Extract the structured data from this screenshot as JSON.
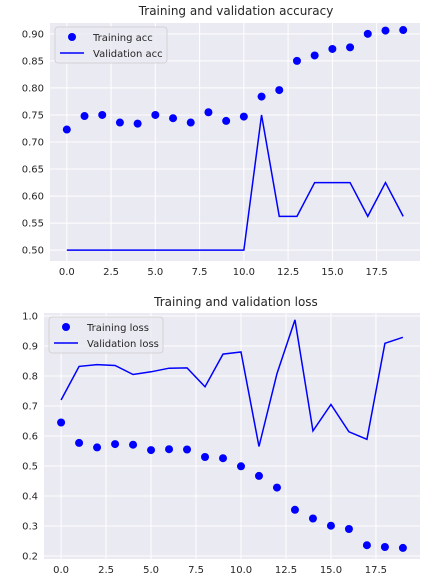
{
  "chart_data": [
    {
      "type": "scatter+line",
      "title": "Training and validation accuracy",
      "x": [
        0,
        1,
        2,
        3,
        4,
        5,
        6,
        7,
        8,
        9,
        10,
        11,
        12,
        13,
        14,
        15,
        16,
        17,
        18,
        19
      ],
      "series": [
        {
          "name": "Training acc",
          "style": "dots",
          "color": "#0000ff",
          "values": [
            0.723,
            0.748,
            0.75,
            0.736,
            0.734,
            0.75,
            0.744,
            0.736,
            0.755,
            0.739,
            0.747,
            0.784,
            0.796,
            0.85,
            0.86,
            0.872,
            0.875,
            0.9,
            0.906,
            0.907
          ]
        },
        {
          "name": "Validation acc",
          "style": "line",
          "color": "#0000ff",
          "values": [
            0.5,
            0.5,
            0.5,
            0.5,
            0.5,
            0.5,
            0.5,
            0.5,
            0.5,
            0.5,
            0.5,
            0.75,
            0.5625,
            0.5625,
            0.625,
            0.625,
            0.625,
            0.5625,
            0.625,
            0.5625
          ]
        }
      ],
      "xlim": [
        -0.95,
        19.95
      ],
      "ylim": [
        0.48,
        0.92
      ],
      "xticks": [
        0.0,
        2.5,
        5.0,
        7.5,
        10.0,
        12.5,
        15.0,
        17.5
      ],
      "xtick_labels": [
        "0.0",
        "2.5",
        "5.0",
        "7.5",
        "10.0",
        "12.5",
        "15.0",
        "17.5"
      ],
      "yticks": [
        0.5,
        0.55,
        0.6,
        0.65,
        0.7,
        0.75,
        0.8,
        0.85,
        0.9
      ],
      "ytick_labels": [
        "0.50",
        "0.55",
        "0.60",
        "0.65",
        "0.70",
        "0.75",
        "0.80",
        "0.85",
        "0.90"
      ],
      "grid": true,
      "legend": "upper-left",
      "background": "#eaeaf2"
    },
    {
      "type": "scatter+line",
      "title": "Training and validation loss",
      "x": [
        0,
        1,
        2,
        3,
        4,
        5,
        6,
        7,
        8,
        9,
        10,
        11,
        12,
        13,
        14,
        15,
        16,
        17,
        18,
        19
      ],
      "series": [
        {
          "name": "Training loss",
          "style": "dots",
          "color": "#0000ff",
          "values": [
            0.645,
            0.577,
            0.562,
            0.573,
            0.571,
            0.553,
            0.556,
            0.555,
            0.53,
            0.526,
            0.499,
            0.467,
            0.428,
            0.354,
            0.325,
            0.301,
            0.29,
            0.236,
            0.23,
            0.227
          ]
        },
        {
          "name": "Validation loss",
          "style": "line",
          "color": "#0000ff",
          "values": [
            0.72,
            0.832,
            0.838,
            0.835,
            0.805,
            0.814,
            0.826,
            0.827,
            0.764,
            0.873,
            0.88,
            0.565,
            0.808,
            0.987,
            0.617,
            0.705,
            0.614,
            0.589,
            0.909,
            0.929
          ]
        }
      ],
      "xlim": [
        -0.95,
        19.95
      ],
      "ylim": [
        0.19,
        1.01
      ],
      "xticks": [
        0.0,
        2.5,
        5.0,
        7.5,
        10.0,
        12.5,
        15.0,
        17.5
      ],
      "xtick_labels": [
        "0.0",
        "2.5",
        "5.0",
        "7.5",
        "10.0",
        "12.5",
        "15.0",
        "17.5"
      ],
      "yticks": [
        0.2,
        0.3,
        0.4,
        0.5,
        0.6,
        0.7,
        0.8,
        0.9,
        1.0
      ],
      "ytick_labels": [
        "0.2",
        "0.3",
        "0.4",
        "0.5",
        "0.6",
        "0.7",
        "0.8",
        "0.9",
        "1.0"
      ],
      "grid": true,
      "legend": "upper-left",
      "background": "#eaeaf2"
    }
  ]
}
